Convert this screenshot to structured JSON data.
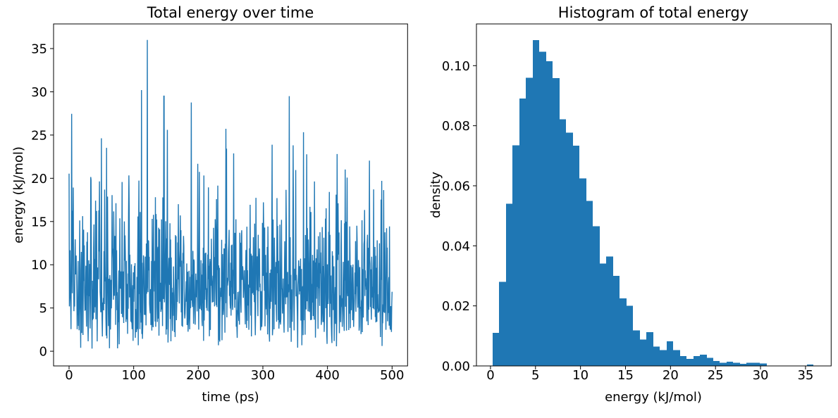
{
  "figure_background": "#ffffff",
  "accent_color": "#1f77b4",
  "chart_data": [
    {
      "type": "line",
      "title": "Total energy over time",
      "xlabel": "time (ps)",
      "ylabel": "energy (kJ/mol)",
      "xlim": [
        -24,
        524
      ],
      "ylim": [
        -1.7,
        37.85
      ],
      "xticks": [
        0,
        100,
        200,
        300,
        400,
        500
      ],
      "xtick_labels": [
        "0",
        "100",
        "200",
        "300",
        "400",
        "500"
      ],
      "yticks": [
        0,
        5,
        10,
        15,
        20,
        25,
        30,
        35
      ],
      "ytick_labels": [
        "0",
        "5",
        "10",
        "15",
        "20",
        "25",
        "30",
        "35"
      ],
      "x_range": [
        0,
        500
      ],
      "n_points": 1000,
      "seed": 12345,
      "line_color": "#1f77b4",
      "text_color": "#000000",
      "spine_color": "#000000",
      "grid": false,
      "legend": null,
      "peak_spikes": [
        {
          "t": 112,
          "value": 30.2
        },
        {
          "t": 121,
          "value": 36.0
        }
      ],
      "clamp_max_others": 29.5,
      "series_distribution": "noisy independent samples drawn from the energy distribution shown in the histogram panel"
    },
    {
      "type": "bar",
      "subtype": "histogram",
      "title": "Histogram of total energy",
      "xlabel": "energy (kJ/mol)",
      "ylabel": "density",
      "xlim": [
        -1.56,
        37.85
      ],
      "ylim": [
        0,
        0.1139
      ],
      "xticks": [
        0,
        5,
        10,
        15,
        20,
        25,
        30,
        35
      ],
      "xtick_labels": [
        "0",
        "5",
        "10",
        "15",
        "20",
        "25",
        "30",
        "35"
      ],
      "yticks": [
        0,
        0.02,
        0.04,
        0.06,
        0.08,
        0.1
      ],
      "ytick_labels": [
        "0.00",
        "0.02",
        "0.04",
        "0.06",
        "0.08",
        "0.10"
      ],
      "bin_start": 0.23,
      "bin_width": 0.743,
      "densities": [
        0.011,
        0.028,
        0.054,
        0.0735,
        0.089,
        0.096,
        0.1085,
        0.1047,
        0.1015,
        0.0959,
        0.0822,
        0.0777,
        0.0734,
        0.0625,
        0.0549,
        0.0465,
        0.0341,
        0.0364,
        0.03,
        0.0225,
        0.02,
        0.0118,
        0.0088,
        0.0112,
        0.0065,
        0.0053,
        0.0082,
        0.0053,
        0.0033,
        0.0023,
        0.0033,
        0.0037,
        0.0027,
        0.0016,
        0.0011,
        0.0014,
        0.0011,
        0.0007,
        0.001,
        0.001,
        0.0008,
        0,
        0,
        0,
        0,
        0,
        0,
        0.0005
      ],
      "bar_color": "#1f77b4",
      "text_color": "#000000",
      "spine_color": "#000000",
      "grid": false,
      "legend": null
    }
  ]
}
